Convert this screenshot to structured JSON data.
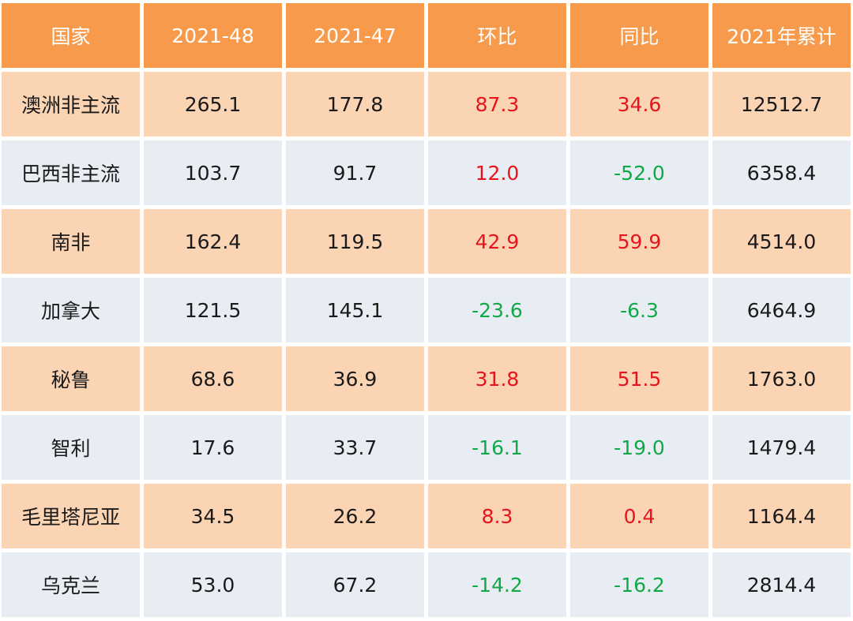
{
  "chart_data": {
    "type": "table",
    "columns": [
      "国家",
      "2021-48",
      "2021-47",
      "环比",
      "同比",
      "2021年累计"
    ],
    "rows": [
      [
        "澳洲非主流",
        "265.1",
        "177.8",
        "87.3",
        "34.6",
        "12512.7"
      ],
      [
        "巴西非主流",
        "103.7",
        "91.7",
        "12.0",
        "-52.0",
        "6358.4"
      ],
      [
        "南非",
        "162.4",
        "119.5",
        "42.9",
        "59.9",
        "4514.0"
      ],
      [
        "加拿大",
        "121.5",
        "145.1",
        "-23.6",
        "-6.3",
        "6464.9"
      ],
      [
        "秘鲁",
        "68.6",
        "36.9",
        "31.8",
        "51.5",
        "1763.0"
      ],
      [
        "智利",
        "17.6",
        "33.7",
        "-16.1",
        "-19.0",
        "1479.4"
      ],
      [
        "毛里塔尼亚",
        "34.5",
        "26.2",
        "8.3",
        "0.4",
        "1164.4"
      ],
      [
        "乌克兰",
        "53.0",
        "67.2",
        "-14.2",
        "-16.2",
        "2814.4"
      ]
    ],
    "colors": {
      "header_bg": "#f79a4c",
      "header_text": "#ffffff",
      "row_odd_bg": "#fbd4b4",
      "row_even_bg": "#e8edf4",
      "positive": "#e8141b",
      "negative": "#12a84a"
    }
  }
}
